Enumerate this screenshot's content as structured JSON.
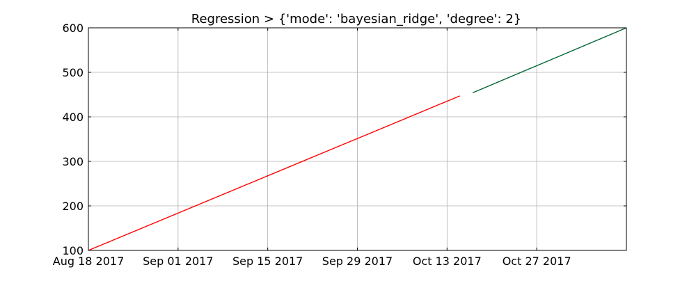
{
  "chart_data": {
    "type": "line",
    "title": "Regression > {'mode': 'bayesian_ridge', 'degree': 2}",
    "xlabel": "",
    "ylabel": "",
    "x_type": "date",
    "xlim": [
      "2017-08-18",
      "2017-11-10"
    ],
    "ylim": [
      100,
      600
    ],
    "x_ticks": [
      "2017-08-18",
      "2017-09-01",
      "2017-09-15",
      "2017-09-29",
      "2017-10-13",
      "2017-10-27"
    ],
    "x_tick_labels": [
      "Aug 18 2017",
      "Sep 01 2017",
      "Sep 15 2017",
      "Sep 29 2017",
      "Oct 13 2017",
      "Oct 27 2017"
    ],
    "y_ticks": [
      100,
      200,
      300,
      400,
      500,
      600
    ],
    "y_tick_labels": [
      "100",
      "200",
      "300",
      "400",
      "500",
      "600"
    ],
    "grid": true,
    "series": [
      {
        "color": "#ff0000",
        "points": [
          {
            "x": "2017-08-18",
            "y": 100
          },
          {
            "x": "2017-10-15",
            "y": 447
          }
        ]
      },
      {
        "color": "#006633",
        "points": [
          {
            "x": "2017-10-17",
            "y": 454
          },
          {
            "x": "2017-11-10",
            "y": 600
          }
        ]
      }
    ]
  }
}
